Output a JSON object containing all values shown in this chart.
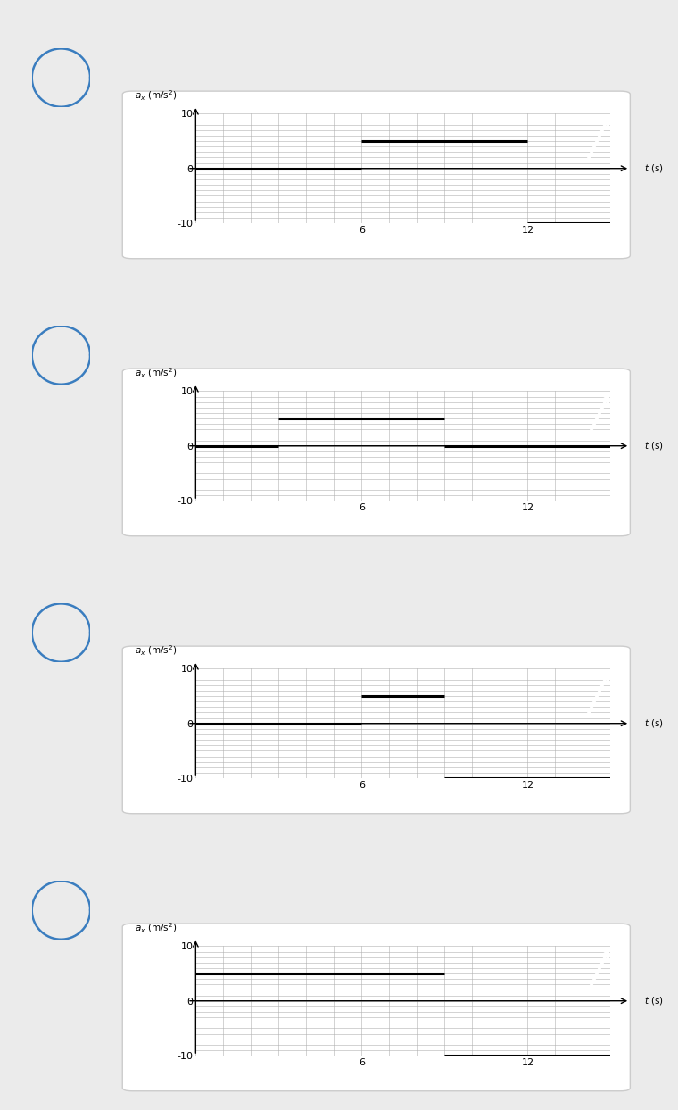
{
  "graphs": [
    {
      "segments": [
        {
          "t_start": 0,
          "t_end": 6,
          "a": 0
        },
        {
          "t_start": 6,
          "t_end": 12,
          "a": 5
        },
        {
          "t_start": 12,
          "t_end": 15,
          "a": -10
        }
      ]
    },
    {
      "segments": [
        {
          "t_start": 0,
          "t_end": 3,
          "a": 0
        },
        {
          "t_start": 3,
          "t_end": 9,
          "a": 5
        },
        {
          "t_start": 9,
          "t_end": 15,
          "a": 0
        }
      ]
    },
    {
      "segments": [
        {
          "t_start": 0,
          "t_end": 6,
          "a": 0
        },
        {
          "t_start": 6,
          "t_end": 9,
          "a": 5
        },
        {
          "t_start": 9,
          "t_end": 15,
          "a": -10
        }
      ]
    },
    {
      "segments": [
        {
          "t_start": 0,
          "t_end": 9,
          "a": 5
        },
        {
          "t_start": 9,
          "t_end": 15,
          "a": -10
        }
      ]
    }
  ],
  "xlim": [
    0,
    15
  ],
  "ylim": [
    -10,
    10
  ],
  "xticks": [
    6,
    12
  ],
  "yticks": [
    -10,
    0,
    10
  ],
  "line_color": "black",
  "line_width": 2.2,
  "grid_color": "#b0b0b0",
  "bg_color": "#ebebeb",
  "panel_bg": "#ffffff",
  "circle_color": "#3a7dbf",
  "icon_bg": "#3a7dbf"
}
